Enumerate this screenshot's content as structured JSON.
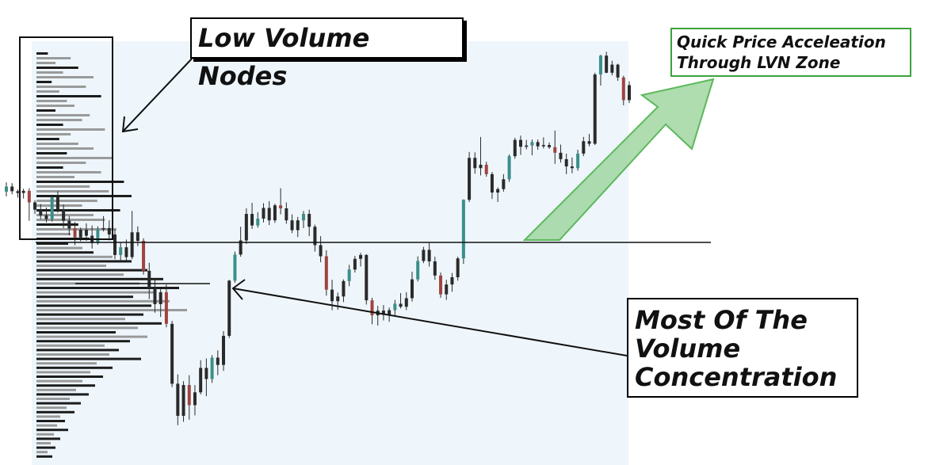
{
  "chart_data": {
    "type": "candlestick",
    "title": "",
    "xlabel": "",
    "ylabel": "",
    "grid": false,
    "ylim": [
      0,
      100
    ],
    "volume_profile_orientation": "left",
    "resistance_level": 60.5,
    "poc_level": 53,
    "candles": [
      [
        62.6,
        64.8,
        61.5,
        63.8
      ],
      [
        63.8,
        64.6,
        62.0,
        62.7
      ],
      [
        62.7,
        63.1,
        61.2,
        62.3
      ],
      [
        62.3,
        63.3,
        61.0,
        62.8
      ],
      [
        62.8,
        63.4,
        55.8,
        60.1
      ],
      [
        60.1,
        60.6,
        57.4,
        58.4
      ],
      [
        58.4,
        59.7,
        56.2,
        57.1
      ],
      [
        57.1,
        58.9,
        55.4,
        56.2
      ],
      [
        56.2,
        61.9,
        55.6,
        61.3
      ],
      [
        61.3,
        62.7,
        57.7,
        58.4
      ],
      [
        58.4,
        59.6,
        54.1,
        55.8
      ],
      [
        55.8,
        56.9,
        52.4,
        54.0
      ],
      [
        54.0,
        55.5,
        50.1,
        51.9
      ],
      [
        51.9,
        54.2,
        51.0,
        53.7
      ],
      [
        53.7,
        55.2,
        51.1,
        52.3
      ],
      [
        52.3,
        54.7,
        49.3,
        50.6
      ],
      [
        50.6,
        54.5,
        50.2,
        53.8
      ],
      [
        53.8,
        56.9,
        53.3,
        54.1
      ],
      [
        54.1,
        55.9,
        51.2,
        52.6
      ],
      [
        52.6,
        53.8,
        46.8,
        47.8
      ],
      [
        47.8,
        50.8,
        46.6,
        49.6
      ],
      [
        49.6,
        51.4,
        46.5,
        47.3
      ],
      [
        47.3,
        58.1,
        46.8,
        53.1
      ],
      [
        53.1,
        54.5,
        49.9,
        51.1
      ],
      [
        51.1,
        51.7,
        43.2,
        44.1
      ],
      [
        44.1,
        46.0,
        37.5,
        40.0
      ],
      [
        40.0,
        42.2,
        34.3,
        36.3
      ],
      [
        36.3,
        40.0,
        33.3,
        39.1
      ],
      [
        39.1,
        40.9,
        30.9,
        31.7
      ],
      [
        31.7,
        32.4,
        16.9,
        17.7
      ],
      [
        17.7,
        19.9,
        8.0,
        10.2
      ],
      [
        10.2,
        18.3,
        8.8,
        17.4
      ],
      [
        17.4,
        19.7,
        9.3,
        12.7
      ],
      [
        12.7,
        17.4,
        10.3,
        15.7
      ],
      [
        15.7,
        23.2,
        15.2,
        21.4
      ],
      [
        21.4,
        23.6,
        14.8,
        18.8
      ],
      [
        18.8,
        24.4,
        17.9,
        23.8
      ],
      [
        23.8,
        25.5,
        19.7,
        22.1
      ],
      [
        22.1,
        30.0,
        20.7,
        28.9
      ],
      [
        28.9,
        42.0,
        28.4,
        41.8
      ],
      [
        41.8,
        48.6,
        41.3,
        47.9
      ],
      [
        47.9,
        54.4,
        47.4,
        51.2
      ],
      [
        51.2,
        58.7,
        50.4,
        57.4
      ],
      [
        57.4,
        60.0,
        53.9,
        54.7
      ],
      [
        54.7,
        57.8,
        54.2,
        56.3
      ],
      [
        56.3,
        59.9,
        55.4,
        58.8
      ],
      [
        58.8,
        60.4,
        54.8,
        55.9
      ],
      [
        55.9,
        59.8,
        55.3,
        59.4
      ],
      [
        59.4,
        63.4,
        57.3,
        58.7
      ],
      [
        58.7,
        60.1,
        55.1,
        55.9
      ],
      [
        55.9,
        57.3,
        52.9,
        53.6
      ],
      [
        53.6,
        56.7,
        52.0,
        55.9
      ],
      [
        55.9,
        58.1,
        54.1,
        57.4
      ],
      [
        57.4,
        58.4,
        52.2,
        54.4
      ],
      [
        54.4,
        54.9,
        48.6,
        50.1
      ],
      [
        50.1,
        52.2,
        46.1,
        47.5
      ],
      [
        47.5,
        48.9,
        38.3,
        39.7
      ],
      [
        39.7,
        42.0,
        34.9,
        37.0
      ],
      [
        37.0,
        39.0,
        35.0,
        38.1
      ],
      [
        38.1,
        42.1,
        36.8,
        41.7
      ],
      [
        41.7,
        45.5,
        40.5,
        44.4
      ],
      [
        44.4,
        47.6,
        43.7,
        46.9
      ],
      [
        46.9,
        48.3,
        45.1,
        47.8
      ],
      [
        47.8,
        48.0,
        36.2,
        37.2
      ],
      [
        37.2,
        37.8,
        31.6,
        33.7
      ],
      [
        33.7,
        35.9,
        31.3,
        34.8
      ],
      [
        34.8,
        36.1,
        32.5,
        33.8
      ],
      [
        33.8,
        35.5,
        32.2,
        34.9
      ],
      [
        34.9,
        37.3,
        33.7,
        36.4
      ],
      [
        36.4,
        38.9,
        35.3,
        35.7
      ],
      [
        35.7,
        39.1,
        34.9,
        37.7
      ],
      [
        37.7,
        43.9,
        36.9,
        42.1
      ],
      [
        42.1,
        47.5,
        41.6,
        46.4
      ],
      [
        46.4,
        49.7,
        45.9,
        49.0
      ],
      [
        49.0,
        50.6,
        45.1,
        46.3
      ],
      [
        46.3,
        47.4,
        42.0,
        43.0
      ],
      [
        43.0,
        43.7,
        37.8,
        38.6
      ],
      [
        38.6,
        42.0,
        37.3,
        40.9
      ],
      [
        40.9,
        43.6,
        39.2,
        42.6
      ],
      [
        42.6,
        47.4,
        41.8,
        47.0
      ],
      [
        47.0,
        60.8,
        45.7,
        60.7
      ],
      [
        60.7,
        71.9,
        60.2,
        70.5
      ],
      [
        70.5,
        71.8,
        66.8,
        68.1
      ],
      [
        68.1,
        75.4,
        66.4,
        68.9
      ],
      [
        68.9,
        69.6,
        66.1,
        66.7
      ],
      [
        66.7,
        67.2,
        60.9,
        62.4
      ],
      [
        62.4,
        63.6,
        60.2,
        63.2
      ],
      [
        63.2,
        66.7,
        62.6,
        65.5
      ],
      [
        65.5,
        71.3,
        64.9,
        70.9
      ],
      [
        70.9,
        75.2,
        70.3,
        74.7
      ],
      [
        74.7,
        75.7,
        71.2,
        73.1
      ],
      [
        73.1,
        74.7,
        72.5,
        73.4
      ],
      [
        73.4,
        74.8,
        71.1,
        74.2
      ],
      [
        74.2,
        74.8,
        72.4,
        73.2
      ],
      [
        73.2,
        75.3,
        72.7,
        73.5
      ],
      [
        73.5,
        74.1,
        72.6,
        73.0
      ],
      [
        73.0,
        76.9,
        69.1,
        71.7
      ],
      [
        71.7,
        73.6,
        69.4,
        70.2
      ],
      [
        70.2,
        71.5,
        66.7,
        68.5
      ],
      [
        68.5,
        70.6,
        66.9,
        68.1
      ],
      [
        68.1,
        72.4,
        67.5,
        71.5
      ],
      [
        71.5,
        75.4,
        70.9,
        74.4
      ],
      [
        74.4,
        76.1,
        73.2,
        73.8
      ],
      [
        73.8,
        90.4,
        73.5,
        90.0
      ],
      [
        90.0,
        94.6,
        87.4,
        94.4
      ],
      [
        94.4,
        95.3,
        90.3,
        90.4
      ],
      [
        90.4,
        93.2,
        89.8,
        92.3
      ],
      [
        92.3,
        92.5,
        88.5,
        89.3
      ],
      [
        89.3,
        89.7,
        82.8,
        84.0
      ],
      [
        84.0,
        88.4,
        83.3,
        87.5
      ]
    ],
    "volume_profile_upper": [
      6,
      18,
      10,
      22,
      14,
      30,
      8,
      26,
      12,
      34,
      16,
      20,
      10,
      28,
      24,
      14,
      36,
      18,
      12,
      22,
      30,
      16,
      40,
      26,
      14,
      34,
      20,
      46,
      28,
      38,
      50,
      32,
      24,
      44,
      30,
      36,
      22,
      42,
      18,
      28
    ],
    "volume_profile_lower": [
      40,
      58,
      72,
      96,
      120,
      88,
      140,
      110,
      160,
      130,
      180,
      150,
      122,
      168,
      145,
      190,
      135,
      112,
      158,
      128,
      100,
      140,
      118,
      86,
      104,
      92,
      132,
      76,
      96,
      68,
      84,
      58,
      74,
      50,
      66,
      42,
      56,
      38,
      48,
      30,
      36,
      26,
      40,
      22,
      30,
      18,
      24,
      14,
      20
    ],
    "annotations": {
      "lvn": "Low Volume Nodes",
      "volume": "Most Of The Volume Concentration",
      "accel_line1": "Quick Price Acceleation",
      "accel_line2": "Through LVN Zone"
    }
  },
  "colors": {
    "background": "#ffffff",
    "profile_panel": "#eef6fc",
    "candle_body": "#2a2a2a",
    "candle_down_accent": "#a0433f",
    "candle_up_accent": "#3b8f88",
    "profile_bar_dark": "#1c1c1c",
    "profile_bar_light": "#9a9a9a",
    "arrow_fill": "#9bd49b",
    "arrow_stroke": "#5cb85c",
    "accel_box_border": "#3aa33a"
  }
}
